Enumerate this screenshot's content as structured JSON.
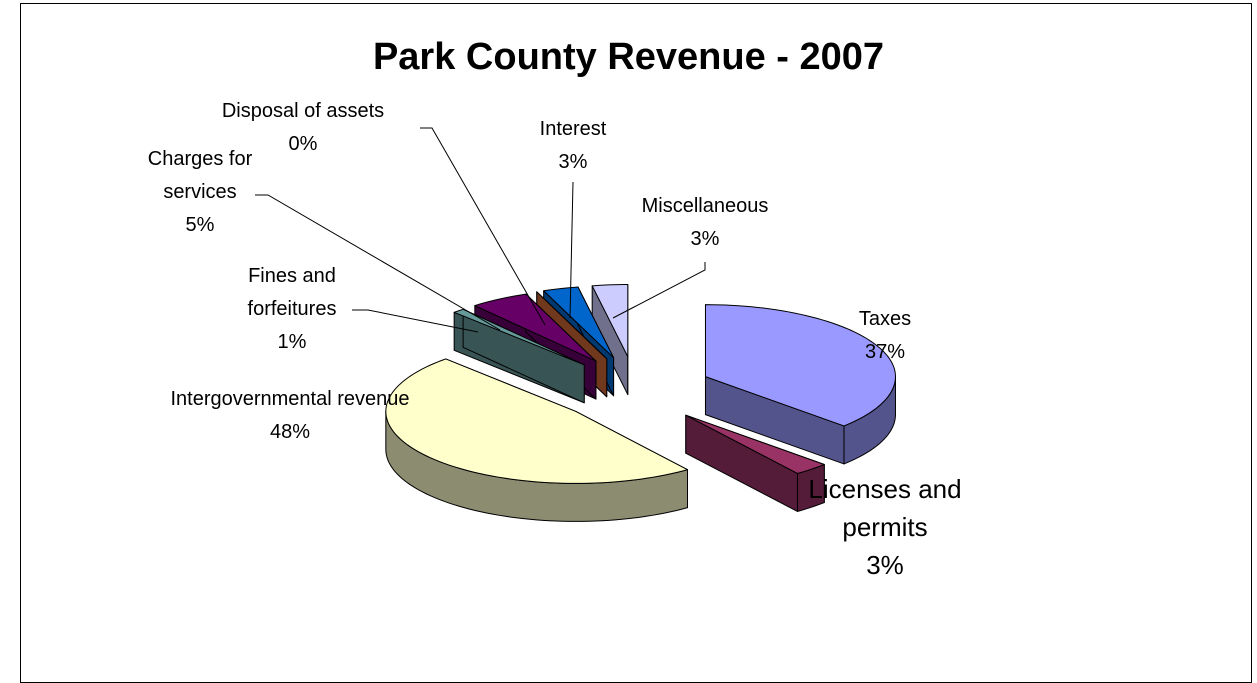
{
  "chart_data": {
    "type": "pie3d",
    "title": "Park County Revenue - 2007",
    "categories": [
      "Taxes",
      "Licenses and permits",
      "Intergovernmental revenue",
      "Fines and forfeitures",
      "Charges for services",
      "Disposal of assets",
      "Interest",
      "Miscellaneous"
    ],
    "values": [
      37,
      3,
      48,
      1,
      5,
      0,
      3,
      3
    ],
    "value_labels": [
      "37%",
      "3%",
      "48%",
      "1%",
      "5%",
      "0%",
      "3%",
      "3%"
    ],
    "colors": [
      "#9999ff",
      "#993366",
      "#ffffcc",
      "#669999",
      "#660066",
      "#cc6633",
      "#0066cc",
      "#ccccff"
    ]
  }
}
